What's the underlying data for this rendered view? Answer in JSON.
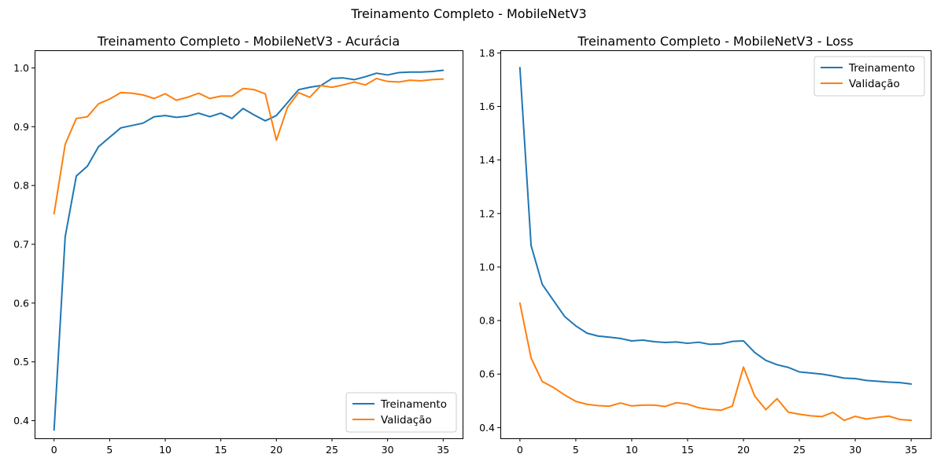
{
  "figure": {
    "suptitle": "Treinamento Completo - MobileNetV3"
  },
  "chart_data": [
    {
      "type": "line",
      "title": "Treinamento Completo - MobileNetV3 - Acurácia",
      "xlabel": "",
      "ylabel": "",
      "xlim": [
        -1.75,
        36.75
      ],
      "ylim": [
        0.37,
        1.03
      ],
      "xticks": [
        0,
        5,
        10,
        15,
        20,
        25,
        30,
        35
      ],
      "yticks": [
        0.4,
        0.5,
        0.6,
        0.7,
        0.8,
        0.9,
        1.0
      ],
      "ytick_labels": [
        "0.4",
        "0.5",
        "0.6",
        "0.7",
        "0.8",
        "0.9",
        "1.0"
      ],
      "grid": false,
      "legend_position": "lower-right",
      "x": [
        0,
        1,
        2,
        3,
        4,
        5,
        6,
        7,
        8,
        9,
        10,
        11,
        12,
        13,
        14,
        15,
        16,
        17,
        18,
        19,
        20,
        21,
        22,
        23,
        24,
        25,
        26,
        27,
        28,
        29,
        30,
        31,
        32,
        33,
        34,
        35
      ],
      "series": [
        {
          "name": "Treinamento",
          "color": "#1f77b4",
          "values": [
            0.384,
            0.713,
            0.816,
            0.833,
            0.866,
            0.882,
            0.898,
            0.902,
            0.906,
            0.917,
            0.919,
            0.916,
            0.918,
            0.923,
            0.917,
            0.923,
            0.914,
            0.931,
            0.92,
            0.91,
            0.919,
            0.941,
            0.963,
            0.967,
            0.97,
            0.982,
            0.983,
            0.98,
            0.985,
            0.991,
            0.988,
            0.992,
            0.993,
            0.993,
            0.994,
            0.996
          ]
        },
        {
          "name": "Validação",
          "color": "#ff7f0e",
          "values": [
            0.752,
            0.87,
            0.914,
            0.917,
            0.939,
            0.947,
            0.958,
            0.957,
            0.954,
            0.948,
            0.956,
            0.945,
            0.95,
            0.957,
            0.948,
            0.952,
            0.952,
            0.965,
            0.963,
            0.956,
            0.877,
            0.933,
            0.958,
            0.95,
            0.97,
            0.967,
            0.971,
            0.976,
            0.971,
            0.982,
            0.977,
            0.976,
            0.979,
            0.978,
            0.98,
            0.981
          ]
        }
      ]
    },
    {
      "type": "line",
      "title": "Treinamento Completo - MobileNetV3 - Loss",
      "xlabel": "",
      "ylabel": "",
      "xlim": [
        -1.75,
        36.75
      ],
      "ylim": [
        0.36,
        1.81
      ],
      "xticks": [
        0,
        5,
        10,
        15,
        20,
        25,
        30,
        35
      ],
      "yticks": [
        0.4,
        0.6,
        0.8,
        1.0,
        1.2,
        1.4,
        1.6,
        1.8
      ],
      "ytick_labels": [
        "0.4",
        "0.6",
        "0.8",
        "1.0",
        "1.2",
        "1.4",
        "1.6",
        "1.8"
      ],
      "grid": false,
      "legend_position": "upper-right",
      "x": [
        0,
        1,
        2,
        3,
        4,
        5,
        6,
        7,
        8,
        9,
        10,
        11,
        12,
        13,
        14,
        15,
        16,
        17,
        18,
        19,
        20,
        21,
        22,
        23,
        24,
        25,
        26,
        27,
        28,
        29,
        30,
        31,
        32,
        33,
        34,
        35
      ],
      "series": [
        {
          "name": "Treinamento",
          "color": "#1f77b4",
          "values": [
            1.745,
            1.08,
            0.935,
            0.875,
            0.815,
            0.78,
            0.753,
            0.742,
            0.738,
            0.733,
            0.724,
            0.727,
            0.721,
            0.718,
            0.72,
            0.715,
            0.719,
            0.711,
            0.713,
            0.722,
            0.724,
            0.681,
            0.651,
            0.635,
            0.625,
            0.608,
            0.604,
            0.6,
            0.593,
            0.585,
            0.583,
            0.576,
            0.573,
            0.57,
            0.568,
            0.563
          ]
        },
        {
          "name": "Validação",
          "color": "#ff7f0e",
          "values": [
            0.865,
            0.66,
            0.572,
            0.55,
            0.522,
            0.498,
            0.487,
            0.482,
            0.48,
            0.492,
            0.481,
            0.484,
            0.484,
            0.479,
            0.493,
            0.488,
            0.474,
            0.468,
            0.465,
            0.48,
            0.626,
            0.518,
            0.467,
            0.508,
            0.458,
            0.45,
            0.444,
            0.441,
            0.457,
            0.427,
            0.442,
            0.432,
            0.438,
            0.443,
            0.43,
            0.427
          ]
        }
      ]
    }
  ]
}
